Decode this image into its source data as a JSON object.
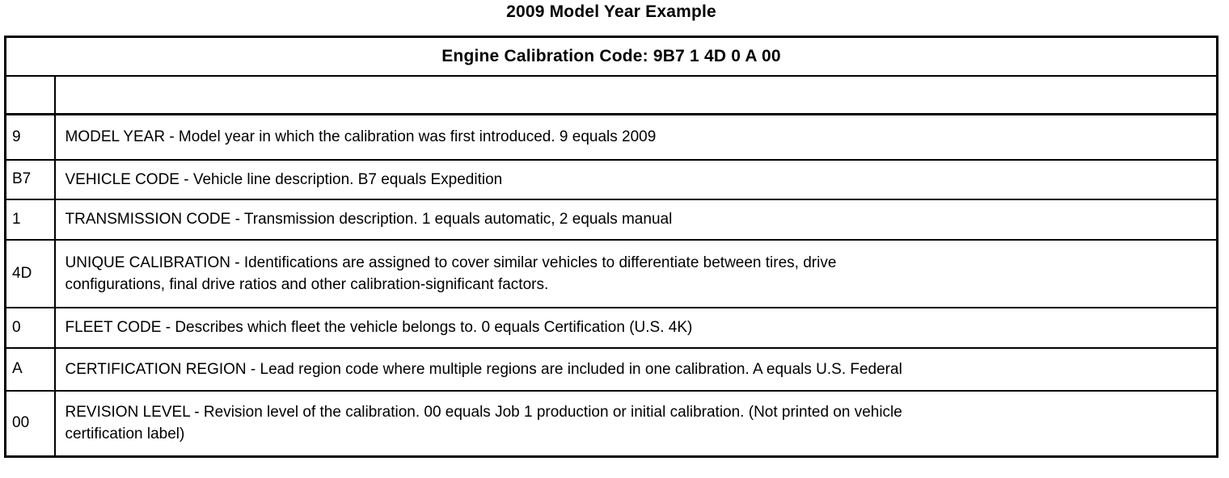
{
  "page": {
    "title": "2009 Model Year Example"
  },
  "table": {
    "header": "Engine Calibration Code: 9B7 1 4D 0 A 00",
    "rows": [
      {
        "code": "9",
        "desc": "MODEL YEAR - Model year in which the calibration was first introduced. 9 equals 2009"
      },
      {
        "code": "B7",
        "desc": "VEHICLE CODE - Vehicle line description. B7 equals Expedition"
      },
      {
        "code": "1",
        "desc": "TRANSMISSION CODE - Transmission description. 1 equals automatic, 2 equals manual"
      },
      {
        "code": "4D",
        "desc": "UNIQUE CALIBRATION - Identifications are assigned to cover similar vehicles to differentiate between tires, drive\nconfigurations, final drive ratios and other calibration-significant factors."
      },
      {
        "code": "0",
        "desc": "FLEET CODE - Describes which fleet the vehicle belongs to. 0 equals Certification (U.S. 4K)"
      },
      {
        "code": "A",
        "desc": "CERTIFICATION REGION - Lead region code where multiple regions are included in one calibration. A equals U.S. Federal"
      },
      {
        "code": "00",
        "desc": "REVISION LEVEL - Revision level of the calibration. 00 equals Job 1 production or initial calibration. (Not printed on vehicle\ncertification label)"
      }
    ]
  }
}
